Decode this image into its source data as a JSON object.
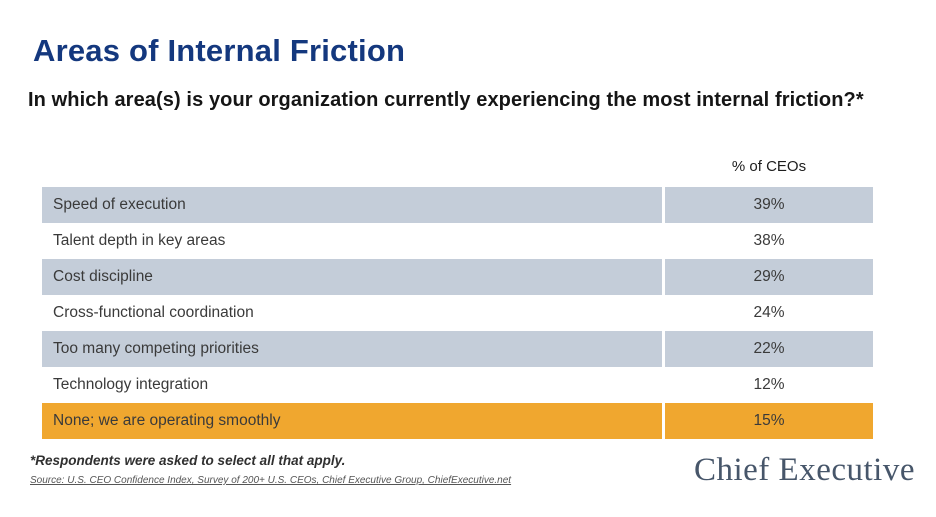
{
  "page": {
    "title": "Areas of Internal Friction",
    "subtitle": "In which area(s) is your organization currently experiencing the most internal friction?*",
    "column_header": "% of CEOs",
    "footnote": "*Respondents were asked to select all that apply.",
    "source": "Source: U.S. CEO Confidence Index, Survey of 200+ U.S. CEOs, Chief Executive Group, ChiefExecutive.net",
    "logo_text": "Chief Executive"
  },
  "table": {
    "rows": [
      {
        "label": "Speed of execution",
        "value": "39%"
      },
      {
        "label": "Talent depth in key areas",
        "value": "38%"
      },
      {
        "label": "Cost discipline",
        "value": "29%"
      },
      {
        "label": "Cross-functional coordination",
        "value": "24%"
      },
      {
        "label": "Too many competing priorities",
        "value": "22%"
      },
      {
        "label": "Technology integration",
        "value": "12%"
      },
      {
        "label": "None; we are operating smoothly",
        "value": "15%"
      }
    ]
  },
  "colors": {
    "title_navy": "#14387e",
    "row_shade_blue": "#c4cdd9",
    "highlight_orange": "#f0a72f",
    "logo_slate": "#47566a",
    "body_text": "#3a3a3a"
  },
  "chart_data": {
    "type": "table",
    "title": "Areas of Internal Friction",
    "question": "In which area(s) is your organization currently experiencing the most internal friction?*",
    "value_column": "% of CEOs",
    "categories": [
      "Speed of execution",
      "Talent depth in key areas",
      "Cost discipline",
      "Cross-functional coordination",
      "Too many competing priorities",
      "Technology integration",
      "None; we are operating smoothly"
    ],
    "values": [
      39,
      38,
      29,
      24,
      22,
      12,
      15
    ],
    "unit": "percent of CEOs",
    "highlighted_category": "None; we are operating smoothly",
    "row_shading": "alternating light blue-gray and white; final row orange highlight",
    "note": "*Respondents were asked to select all that apply.",
    "source": "Source: U.S. CEO Confidence Index, Survey of 200+ U.S. CEOs, Chief Executive Group, ChiefExecutive.net"
  }
}
